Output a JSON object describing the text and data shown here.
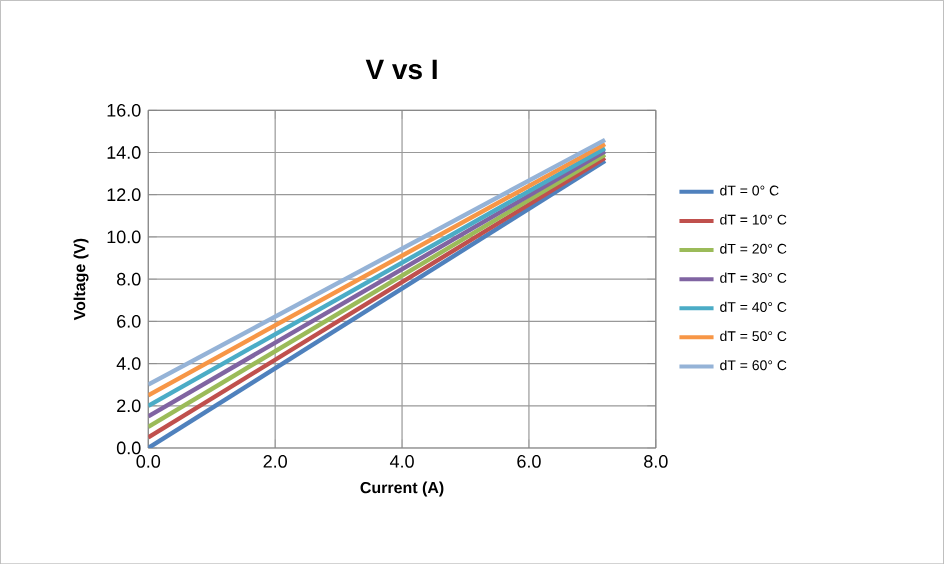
{
  "chart_data": {
    "type": "line",
    "title": "V vs I",
    "xlabel": "Current (A)",
    "ylabel": "Voltage (V)",
    "xlim": [
      0,
      8
    ],
    "ylim": [
      0,
      16
    ],
    "xticks": [
      {
        "value": 0,
        "label": "0.0"
      },
      {
        "value": 2,
        "label": "2.0"
      },
      {
        "value": 4,
        "label": "4.0"
      },
      {
        "value": 6,
        "label": "6.0"
      },
      {
        "value": 8,
        "label": "8.0"
      }
    ],
    "yticks": [
      {
        "value": 0,
        "label": "0.0"
      },
      {
        "value": 2,
        "label": "2.0"
      },
      {
        "value": 4,
        "label": "4.0"
      },
      {
        "value": 6,
        "label": "6.0"
      },
      {
        "value": 8,
        "label": "8.0"
      },
      {
        "value": 10,
        "label": "10.0"
      },
      {
        "value": 12,
        "label": "12.0"
      },
      {
        "value": 14,
        "label": "14.0"
      },
      {
        "value": 16,
        "label": "16.0"
      }
    ],
    "grid": true,
    "legend": "right",
    "marker": "none",
    "line_style": "solid",
    "x": [
      0,
      7.2
    ],
    "series": [
      {
        "name": "dT = 0° C",
        "color": "#4f81bd",
        "values": [
          0,
          13.6
        ]
      },
      {
        "name": "dT = 10° C",
        "color": "#c0504d",
        "values": [
          0.5,
          13.75
        ]
      },
      {
        "name": "dT = 20° C",
        "color": "#9bbb59",
        "values": [
          1.0,
          13.9
        ]
      },
      {
        "name": "dT = 30° C",
        "color": "#8064a2",
        "values": [
          1.5,
          14.05
        ]
      },
      {
        "name": "dT = 40° C",
        "color": "#4bacc6",
        "values": [
          2.0,
          14.2
        ]
      },
      {
        "name": "dT = 50° C",
        "color": "#f79646",
        "values": [
          2.5,
          14.4
        ]
      },
      {
        "name": "dT = 60° C",
        "color": "#95b3d7",
        "values": [
          3.0,
          14.6
        ]
      }
    ]
  }
}
